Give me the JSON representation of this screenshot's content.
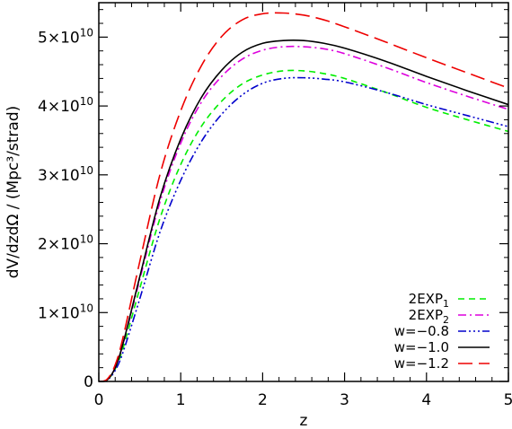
{
  "chart_data": {
    "type": "line",
    "title": "",
    "xlabel": "z",
    "ylabel": "dV/dzdΩ / (Mpc³/strad)",
    "xlim": [
      0,
      5
    ],
    "ylim": [
      0,
      55000000000.0
    ],
    "grid": false,
    "legend_position": "bottom-right",
    "x_ticks": [
      0,
      1,
      2,
      3,
      4,
      5
    ],
    "x_tick_labels": [
      "0",
      "1",
      "2",
      "3",
      "4",
      "5"
    ],
    "y_ticks": [
      0,
      10000000000.0,
      20000000000.0,
      30000000000.0,
      40000000000.0,
      50000000000.0
    ],
    "y_tick_labels": [
      {
        "mantissa": "0",
        "exponent": ""
      },
      {
        "mantissa": "1×10",
        "exponent": "10"
      },
      {
        "mantissa": "2×10",
        "exponent": "10"
      },
      {
        "mantissa": "3×10",
        "exponent": "10"
      },
      {
        "mantissa": "4×10",
        "exponent": "10"
      },
      {
        "mantissa": "5×10",
        "exponent": "10"
      }
    ],
    "x": [
      0,
      0.1,
      0.2,
      0.3,
      0.5,
      0.75,
      1.0,
      1.25,
      1.5,
      1.75,
      2.0,
      2.25,
      2.5,
      2.75,
      3.0,
      3.5,
      4.0,
      4.5,
      5.0
    ],
    "series": [
      {
        "name": "2EXP",
        "subscript": "1",
        "color": "#00ee00",
        "dash": "7,5",
        "values": [
          0,
          200000000.0,
          1800000000.0,
          5000000000.0,
          13500000000.0,
          23800000000.0,
          31500000000.0,
          37000000000.0,
          40700000000.0,
          43200000000.0,
          44500000000.0,
          45100000000.0,
          45100000000.0,
          44700000000.0,
          44000000000.0,
          42000000000.0,
          39800000000.0,
          38000000000.0,
          36300000000.0
        ]
      },
      {
        "name": "2EXP",
        "subscript": "2",
        "color": "#dd00dd",
        "dash": "9,4,2,4",
        "values": [
          0,
          200000000.0,
          2000000000.0,
          5600000000.0,
          14800000000.0,
          26200000000.0,
          34600000000.0,
          40500000000.0,
          44300000000.0,
          46800000000.0,
          48100000000.0,
          48600000000.0,
          48600000000.0,
          48300000000.0,
          47600000000.0,
          45600000000.0,
          43400000000.0,
          41400000000.0,
          39500000000.0
        ]
      },
      {
        "name": "w=−0.8",
        "color": "#0000cc",
        "dash": "9,3,2,3,2,3,2,3",
        "values": [
          0,
          200000000.0,
          1600000000.0,
          4400000000.0,
          12000000000.0,
          21800000000.0,
          29200000000.0,
          34800000000.0,
          38800000000.0,
          41600000000.0,
          43300000000.0,
          44000000000.0,
          44100000000.0,
          43900000000.0,
          43500000000.0,
          42000000000.0,
          40200000000.0,
          38600000000.0,
          37000000000.0
        ]
      },
      {
        "name": "w=−1.0",
        "color": "#000000",
        "dash": "",
        "values": [
          0,
          200000000.0,
          2000000000.0,
          5700000000.0,
          15200000000.0,
          26800000000.0,
          35200000000.0,
          41200000000.0,
          45200000000.0,
          47800000000.0,
          49100000000.0,
          49500000000.0,
          49500000000.0,
          49100000000.0,
          48400000000.0,
          46500000000.0,
          44300000000.0,
          42200000000.0,
          40200000000.0
        ]
      },
      {
        "name": "w=−1.2",
        "color": "#ee0000",
        "dash": "16,7",
        "values": [
          0,
          300000000.0,
          2400000000.0,
          6600000000.0,
          17400000000.0,
          30200000000.0,
          39300000000.0,
          45800000000.0,
          50100000000.0,
          52500000000.0,
          53400000000.0,
          53500000000.0,
          53200000000.0,
          52500000000.0,
          51500000000.0,
          49300000000.0,
          47000000000.0,
          44800000000.0,
          42600000000.0
        ]
      }
    ]
  }
}
